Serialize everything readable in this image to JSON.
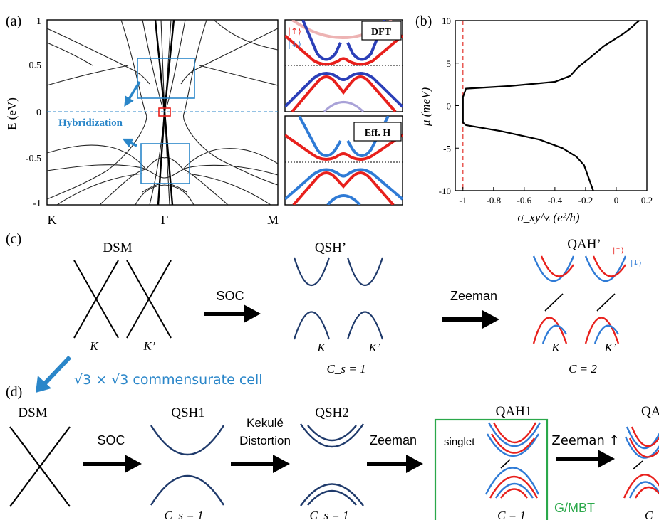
{
  "colors": {
    "navy": "#1f3a6b",
    "spin_up": "#e8201c",
    "spin_down": "#2f7bd6",
    "box_blue": "#2a86c9",
    "green": "#2aa84a",
    "dashed_red": "#e85a55",
    "black": "#000000"
  },
  "panel_a": {
    "label": "(a)",
    "ylabel": "E (eV)",
    "yticks": [
      "1",
      "0.5",
      "0",
      "-0.5",
      "-1"
    ],
    "xticks": [
      "K",
      "Γ",
      "M"
    ],
    "annotation": "Hybridization",
    "dft": {
      "tag": "DFT",
      "legend_up": "|↑⟩",
      "legend_down": "|↓⟩"
    },
    "effh": {
      "tag": "Eff. H"
    }
  },
  "panel_b": {
    "label": "(b)",
    "ylabel": "μ (meV)",
    "xlabel": "σ_xy^z (e²/h)",
    "yticks": [
      "10",
      "5",
      "0",
      "-5",
      "-10"
    ],
    "xticks": [
      "-1",
      "-0.8",
      "-0.6",
      "-0.4",
      "-0.2",
      "0",
      "0.2"
    ]
  },
  "panel_c": {
    "label": "(c)",
    "dsm": {
      "title": "DSM",
      "k1": "K",
      "k2": "K’"
    },
    "arrow1": "SOC",
    "qsh": {
      "title": "QSH’",
      "k1": "K",
      "k2": "K’",
      "chern": "C_s = 1"
    },
    "arrow2": "Zeeman",
    "qah": {
      "title": "QAH’",
      "legend_up": "|↑⟩",
      "legend_down": "|↓⟩",
      "k1": "K",
      "k2": "K’",
      "chern": "C = 2"
    }
  },
  "panel_d": {
    "label": "(d)",
    "cell_text": "√3 × √3 commensurate cell",
    "dsm_title": "DSM",
    "arrow_soc": "SOC",
    "qsh1": {
      "title": "QSH1",
      "chern": "C_s = 1"
    },
    "arrow_kek_line1": "Kekulé",
    "arrow_kek_line2": "Distortion",
    "qsh2": {
      "title": "QSH2",
      "chern": "C_s = 1"
    },
    "arrow_zeeman": "Zeeman",
    "qah1": {
      "title": "QAH1",
      "singlet": "singlet",
      "chern": "C = 1",
      "material": "G/MBT"
    },
    "arrow_zeeman_up": "Zeeman ↑",
    "qah2_partial_title": "QA",
    "qah2_partial_chern": "C"
  },
  "chart_data": {
    "type": "line",
    "title": "",
    "xlabel": "σ_xy^z (e²/h)",
    "ylabel": "μ (meV)",
    "xlim": [
      -1.05,
      0.2
    ],
    "ylim": [
      -10,
      10
    ],
    "series": [
      {
        "x": [
          -0.15,
          -0.17,
          -0.19,
          -0.21,
          -0.26,
          -0.35,
          -0.5,
          -0.75,
          -0.98,
          -1.0,
          -1.0,
          -1.0,
          -1.0,
          -0.98,
          -0.7,
          -0.4,
          -0.3,
          -0.25,
          -0.18,
          -0.08,
          0.05,
          0.1,
          0.13,
          0.15
        ],
        "y": [
          -10,
          -9,
          -8,
          -7,
          -6,
          -5,
          -4,
          -3,
          -2.3,
          -2,
          -1,
          0,
          1,
          2,
          2.3,
          2.8,
          3.5,
          4.5,
          5.5,
          7,
          8.5,
          9.2,
          9.7,
          10
        ]
      }
    ],
    "reference_line": {
      "x": -1,
      "style": "dashed"
    }
  }
}
